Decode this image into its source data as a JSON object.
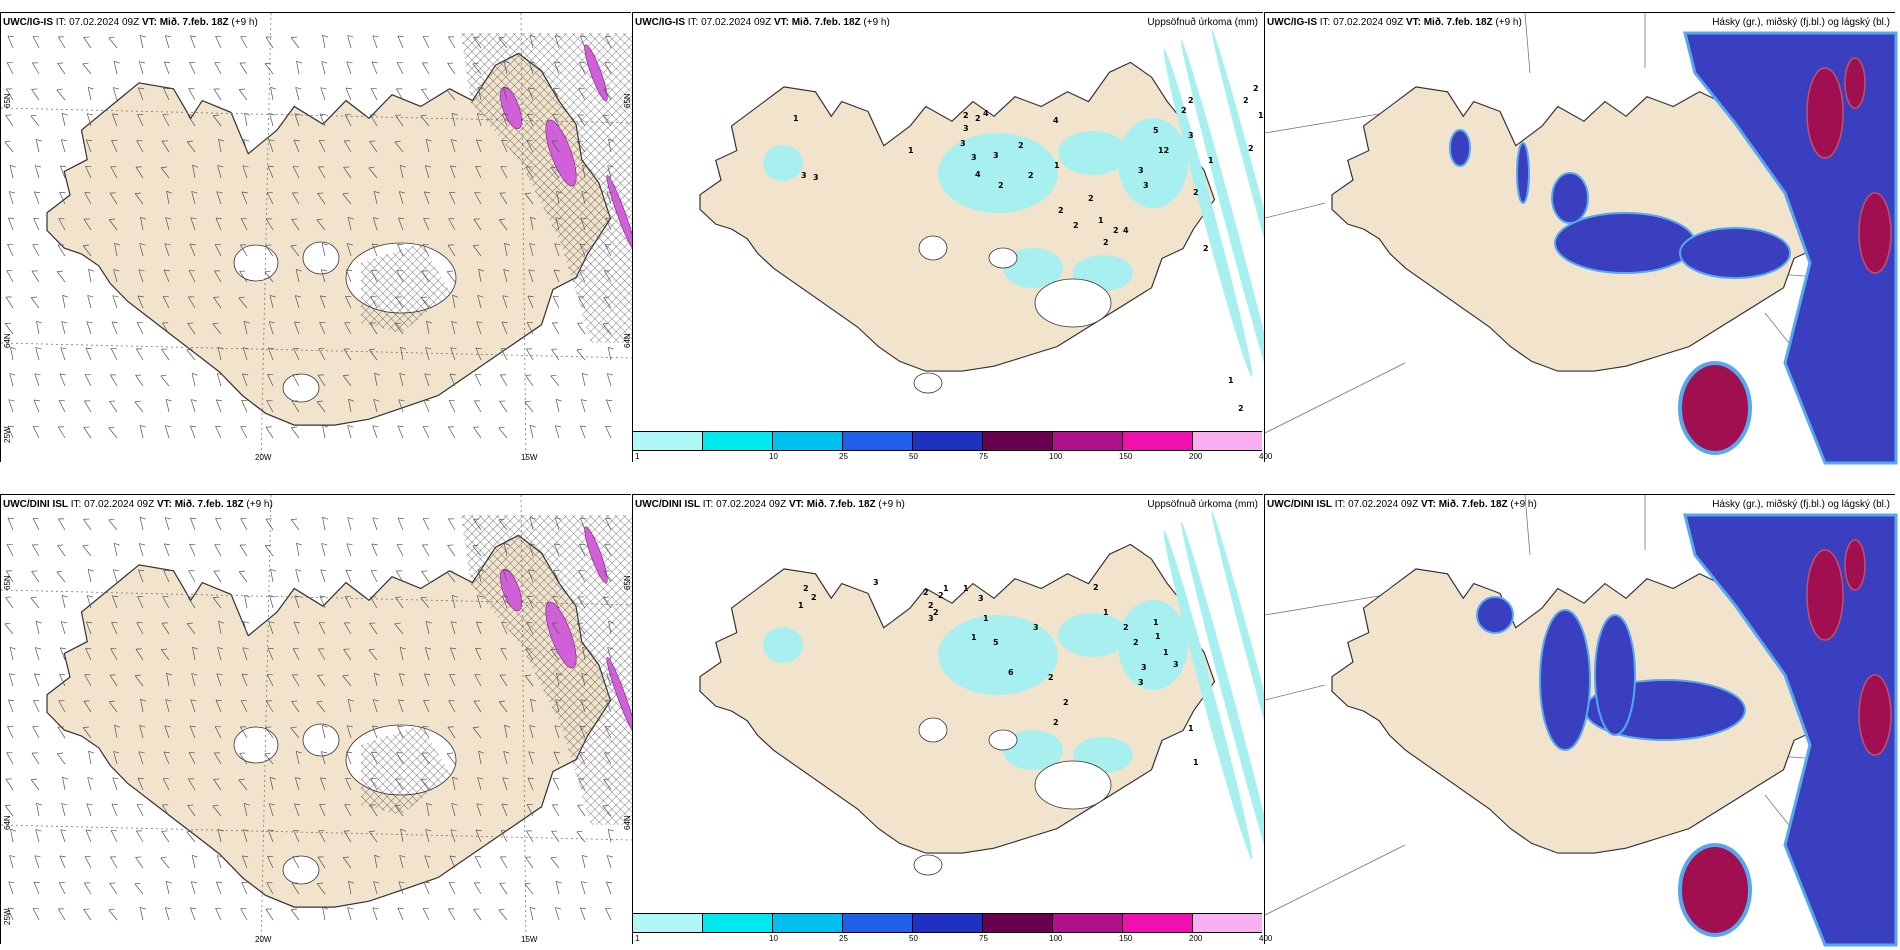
{
  "rows": [
    {
      "wind": {
        "title_bold": "UWC/IG-IS",
        "title_rest": " IT: 07.02.2024 09Z ",
        "vt_bold": "VT: Mið. 7.feb. 18Z",
        "lead": " (+9 h)",
        "lat_labels": [
          "65N",
          "64N",
          "65N",
          "64N"
        ],
        "lon_labels": [
          "20W",
          "15W"
        ],
        "corner_label": "25W"
      },
      "precip": {
        "title_bold": "UWC/IG-IS",
        "title_rest": " IT: 07.02.2024 09Z ",
        "vt_bold": "VT: Mið. 7.feb. 18Z",
        "lead": " (+9 h)",
        "right_title": "Uppsöfnuð úrkoma (mm)",
        "values": [
          {
            "v": "1"
          },
          {
            "v": "3"
          },
          {
            "v": "3"
          },
          {
            "v": "1"
          },
          {
            "v": "2"
          },
          {
            "v": "3"
          },
          {
            "v": "2"
          },
          {
            "v": "3"
          },
          {
            "v": "3"
          },
          {
            "v": "4"
          },
          {
            "v": "4"
          },
          {
            "v": "3"
          },
          {
            "v": "2"
          },
          {
            "v": "2"
          },
          {
            "v": "2"
          },
          {
            "v": "4"
          },
          {
            "v": "1"
          },
          {
            "v": "2"
          },
          {
            "v": "2"
          },
          {
            "v": "2"
          },
          {
            "v": "1"
          },
          {
            "v": "2"
          },
          {
            "v": "2"
          },
          {
            "v": "4"
          },
          {
            "v": "3"
          },
          {
            "v": "3"
          },
          {
            "v": "5"
          },
          {
            "v": "12"
          },
          {
            "v": "2"
          },
          {
            "v": "3"
          },
          {
            "v": "1"
          },
          {
            "v": "2"
          },
          {
            "v": "2"
          },
          {
            "v": "2"
          },
          {
            "v": "1"
          },
          {
            "v": "1"
          },
          {
            "v": "2"
          },
          {
            "v": "1"
          },
          {
            "v": "2"
          },
          {
            "v": "2"
          },
          {
            "v": "2"
          }
        ]
      },
      "cloud": {
        "title_bold": "UWC/IG-IS",
        "title_rest": " IT: 07.02.2024 09Z ",
        "vt_bold": "VT: Mið. 7.feb. 18Z",
        "lead": " (+9 h)",
        "right_title": "Hásky (gr.), miðský (fj.bl.) og lágský (bl.)"
      }
    },
    {
      "wind": {
        "title_bold": "UWC/DINI ISL",
        "title_rest": " IT: 07.02.2024 09Z ",
        "vt_bold": "VT: Mið. 7.feb. 18Z",
        "lead": " (+9 h)",
        "lat_labels": [
          "65N",
          "64N",
          "65N",
          "64N"
        ],
        "lon_labels": [
          "20W",
          "15W"
        ],
        "corner_label": "25W"
      },
      "precip": {
        "title_bold": "UWC/DINI ISL",
        "title_rest": " IT: 07.02.2024 09Z ",
        "vt_bold": "VT: Mið. 7.feb. 18Z",
        "lead": " (+9 h)",
        "right_title": "Uppsöfnuð úrkoma (mm)",
        "values": [
          {
            "v": "2"
          },
          {
            "v": "2"
          },
          {
            "v": "1"
          },
          {
            "v": "3"
          },
          {
            "v": "2"
          },
          {
            "v": "2"
          },
          {
            "v": "2"
          },
          {
            "v": "2"
          },
          {
            "v": "3"
          },
          {
            "v": "1"
          },
          {
            "v": "1"
          },
          {
            "v": "3"
          },
          {
            "v": "1"
          },
          {
            "v": "1"
          },
          {
            "v": "5"
          },
          {
            "v": "6"
          },
          {
            "v": "3"
          },
          {
            "v": "2"
          },
          {
            "v": "2"
          },
          {
            "v": "2"
          },
          {
            "v": "2"
          },
          {
            "v": "1"
          },
          {
            "v": "2"
          },
          {
            "v": "2"
          },
          {
            "v": "3"
          },
          {
            "v": "3"
          },
          {
            "v": "1"
          },
          {
            "v": "1"
          },
          {
            "v": "1"
          },
          {
            "v": "3"
          },
          {
            "v": "1"
          },
          {
            "v": "1"
          }
        ]
      },
      "cloud": {
        "title_bold": "UWC/DINI ISL",
        "title_rest": " IT: 07.02.2024 09Z ",
        "vt_bold": "VT: Mið. 7.feb. 18Z",
        "lead": " (+9 h)",
        "right_title": "Hásky (gr.), miðský (fj.bl.) og lágský (bl.)"
      }
    }
  ],
  "colorbar": {
    "ticks": [
      "1",
      "10",
      "25",
      "50",
      "75",
      "100",
      "150",
      "200",
      "400"
    ],
    "colors": [
      "#b0f8f8",
      "#00e8f0",
      "#00c0f0",
      "#2060e8",
      "#2030c0",
      "#6a0050",
      "#b0108a",
      "#f010b0",
      "#f8b0f0"
    ]
  },
  "colors": {
    "land": "#f1e3cc",
    "precip_fill": "#a8f0f0",
    "cloud_low": "#3a3fc0",
    "cloud_mid": "#55a8f0",
    "cloud_high": "#a01050",
    "snow_purple": "#d060d8"
  }
}
